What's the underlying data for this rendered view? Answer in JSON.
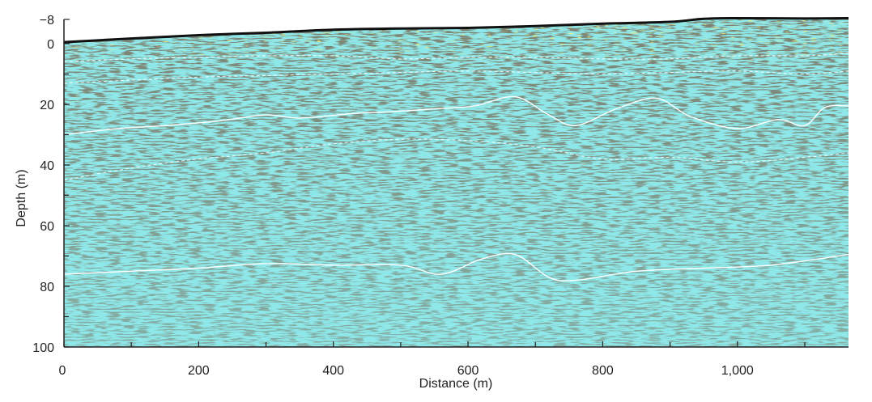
{
  "chart_data": {
    "type": "radargram",
    "xlabel": "Distance (m)",
    "ylabel": "Depth (m)",
    "xlim": [
      0,
      1165
    ],
    "ylim": [
      -8,
      100
    ],
    "y_inverted": true,
    "x_ticks": [
      0,
      200,
      400,
      600,
      800,
      1000
    ],
    "x_tick_labels": [
      "0",
      "200",
      "400",
      "600",
      "800",
      "1,000"
    ],
    "x_minor_ticks": [
      100,
      300,
      500,
      700,
      900,
      1100
    ],
    "y_ticks": [
      -8,
      0,
      20,
      40,
      60,
      80,
      100
    ],
    "y_tick_labels": [
      "−8",
      "0",
      "20",
      "40",
      "60",
      "80",
      "100"
    ],
    "y_minor_ticks": [
      10,
      30,
      50,
      70,
      90
    ],
    "colors": {
      "background": "#8ee8ea",
      "trace_dark": "#4a4a3e",
      "trace_yellow": "#c8c83a",
      "surface_line": "#111111",
      "horizon_line": "#ffffff"
    },
    "surface": {
      "x": [
        0,
        100,
        200,
        300,
        400,
        500,
        600,
        700,
        800,
        900,
        950,
        1000,
        1100,
        1165
      ],
      "depth": [
        -0.5,
        -1.7,
        -2.8,
        -3.6,
        -4.6,
        -5.0,
        -5.2,
        -5.8,
        -6.6,
        -7.2,
        -8.2,
        -8.4,
        -8.3,
        -8.4
      ]
    },
    "horizons": [
      {
        "style": "dashed",
        "x": [
          0,
          100,
          200,
          300,
          400,
          500,
          600,
          700,
          800,
          900,
          1000,
          1100,
          1165
        ],
        "depth": [
          6,
          5,
          4.5,
          4,
          4,
          5,
          4.5,
          4.5,
          5,
          5,
          4,
          4,
          3
        ]
      },
      {
        "style": "dashed",
        "x": [
          0,
          100,
          200,
          300,
          400,
          500,
          600,
          700,
          800,
          900,
          1000,
          1100,
          1165
        ],
        "depth": [
          13,
          12,
          11,
          10.5,
          10,
          9.5,
          9,
          9.5,
          10,
          9.5,
          9,
          10,
          9
        ]
      },
      {
        "style": "solid",
        "x": [
          0,
          80,
          150,
          230,
          300,
          350,
          430,
          480,
          550,
          610,
          670,
          720,
          760,
          820,
          880,
          930,
          1000,
          1060,
          1100,
          1130,
          1165
        ],
        "depth": [
          30,
          28,
          27,
          25.5,
          23.5,
          24.5,
          23,
          22.5,
          21.5,
          20.5,
          17.5,
          23.5,
          27,
          21.5,
          18,
          24,
          28,
          25,
          27,
          21,
          20.5
        ]
      },
      {
        "style": "dashed",
        "x": [
          0,
          100,
          200,
          300,
          400,
          500,
          600,
          700,
          800,
          900,
          1000,
          1100,
          1165
        ],
        "depth": [
          45,
          41,
          38,
          36,
          33,
          31.5,
          32,
          34,
          38,
          37.5,
          39,
          37.5,
          36
        ]
      },
      {
        "style": "solid",
        "x": [
          0,
          100,
          200,
          300,
          400,
          500,
          560,
          620,
          670,
          720,
          760,
          850,
          950,
          1050,
          1165
        ],
        "depth": [
          76,
          75,
          74,
          72.5,
          73,
          73,
          76,
          71,
          69.5,
          77,
          78,
          75,
          74,
          73,
          69.5
        ]
      }
    ]
  }
}
